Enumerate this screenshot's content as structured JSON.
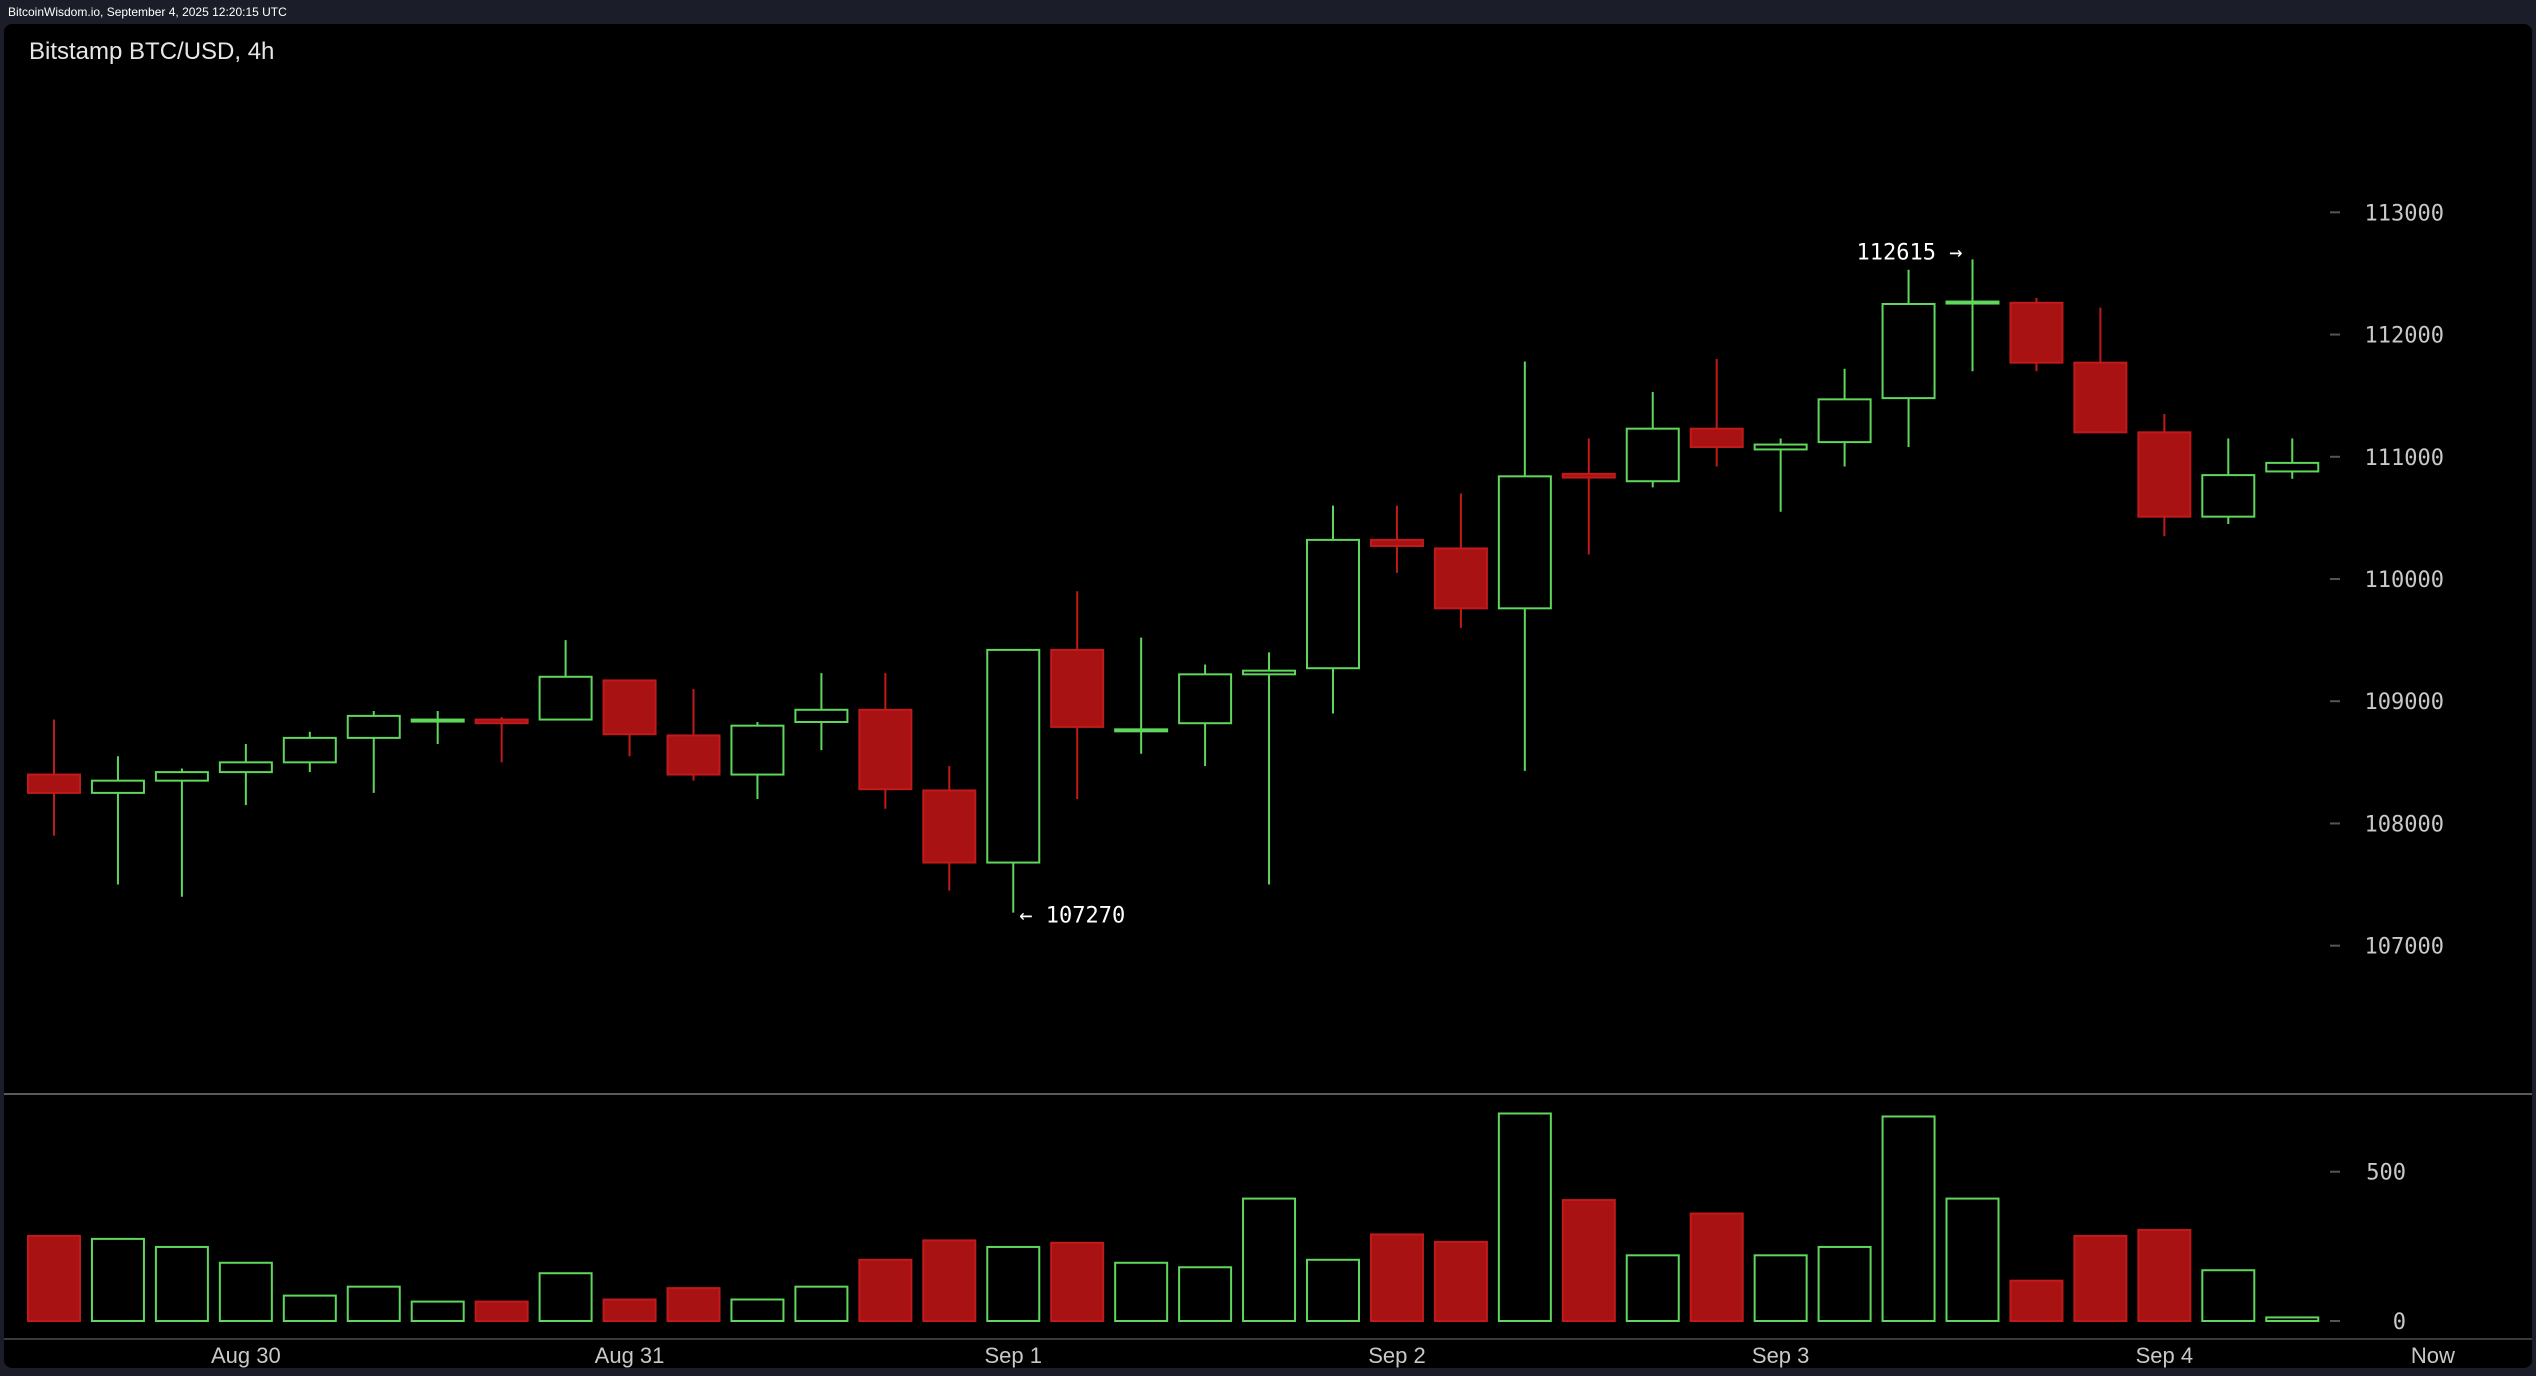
{
  "header": {
    "source_line": "BitcoinWisdom.io, September 4, 2025 12:20:15 UTC"
  },
  "chart_data": {
    "type": "candlestick",
    "title": "Bitstamp BTC/USD, 4h",
    "price_axis": {
      "ticks": [
        107000,
        108000,
        109000,
        110000,
        111000,
        112000,
        113000
      ],
      "range": [
        105950,
        114050
      ]
    },
    "volume_axis": {
      "ticks": [
        0,
        500
      ],
      "range": [
        0,
        700
      ]
    },
    "date_labels": [
      {
        "label": "Aug 30",
        "candle_index": 3
      },
      {
        "label": "Aug 31",
        "candle_index": 9
      },
      {
        "label": "Sep 1",
        "candle_index": 15
      },
      {
        "label": "Sep 2",
        "candle_index": 21
      },
      {
        "label": "Sep 3",
        "candle_index": 27
      },
      {
        "label": "Sep 4",
        "candle_index": 33
      },
      {
        "label": "Now",
        "candle_index": 37.2
      }
    ],
    "annotations": [
      {
        "text": "112615 →",
        "candle_index": 30,
        "price": 112615,
        "side": "left"
      },
      {
        "text": "← 107270",
        "candle_index": 15,
        "price": 107270,
        "side": "right"
      }
    ],
    "colors": {
      "up": "#5fd65c",
      "down": "#c11a1a",
      "down_body": "#a91212"
    },
    "candles": [
      {
        "o": 108400,
        "h": 108850,
        "l": 107900,
        "c": 108250,
        "v": 285
      },
      {
        "o": 108250,
        "h": 108550,
        "l": 107500,
        "c": 108350,
        "v": 275
      },
      {
        "o": 108350,
        "h": 108450,
        "l": 107400,
        "c": 108420,
        "v": 248
      },
      {
        "o": 108420,
        "h": 108650,
        "l": 108150,
        "c": 108500,
        "v": 195
      },
      {
        "o": 108500,
        "h": 108750,
        "l": 108420,
        "c": 108700,
        "v": 85
      },
      {
        "o": 108700,
        "h": 108920,
        "l": 108250,
        "c": 108880,
        "v": 115
      },
      {
        "o": 108850,
        "h": 108920,
        "l": 108650,
        "c": 108850,
        "v": 65
      },
      {
        "o": 108850,
        "h": 108870,
        "l": 108500,
        "c": 108820,
        "v": 65
      },
      {
        "o": 108850,
        "h": 109500,
        "l": 108850,
        "c": 109200,
        "v": 160
      },
      {
        "o": 109170,
        "h": 109170,
        "l": 108550,
        "c": 108730,
        "v": 72
      },
      {
        "o": 108720,
        "h": 109100,
        "l": 108350,
        "c": 108400,
        "v": 110
      },
      {
        "o": 108400,
        "h": 108830,
        "l": 108200,
        "c": 108800,
        "v": 72
      },
      {
        "o": 108830,
        "h": 109230,
        "l": 108600,
        "c": 108930,
        "v": 115
      },
      {
        "o": 108930,
        "h": 109230,
        "l": 108120,
        "c": 108280,
        "v": 205
      },
      {
        "o": 108270,
        "h": 108470,
        "l": 107450,
        "c": 107680,
        "v": 270
      },
      {
        "o": 107680,
        "h": 109420,
        "l": 107270,
        "c": 109420,
        "v": 248
      },
      {
        "o": 109420,
        "h": 109900,
        "l": 108200,
        "c": 108790,
        "v": 262
      },
      {
        "o": 108760,
        "h": 109520,
        "l": 108570,
        "c": 108770,
        "v": 195
      },
      {
        "o": 108820,
        "h": 109300,
        "l": 108470,
        "c": 109220,
        "v": 180
      },
      {
        "o": 109220,
        "h": 109400,
        "l": 107500,
        "c": 109250,
        "v": 410
      },
      {
        "o": 109270,
        "h": 110600,
        "l": 108900,
        "c": 110320,
        "v": 205
      },
      {
        "o": 110320,
        "h": 110600,
        "l": 110050,
        "c": 110270,
        "v": 290
      },
      {
        "o": 110250,
        "h": 110700,
        "l": 109600,
        "c": 109760,
        "v": 265
      },
      {
        "o": 109760,
        "h": 111780,
        "l": 108430,
        "c": 110840,
        "v": 695
      },
      {
        "o": 110860,
        "h": 111150,
        "l": 110200,
        "c": 110830,
        "v": 405
      },
      {
        "o": 110800,
        "h": 111530,
        "l": 110750,
        "c": 111230,
        "v": 220
      },
      {
        "o": 111230,
        "h": 111800,
        "l": 110920,
        "c": 111080,
        "v": 360
      },
      {
        "o": 111060,
        "h": 111150,
        "l": 110550,
        "c": 111100,
        "v": 220
      },
      {
        "o": 111120,
        "h": 111720,
        "l": 110920,
        "c": 111470,
        "v": 248
      },
      {
        "o": 111480,
        "h": 112530,
        "l": 111080,
        "c": 112250,
        "v": 685
      },
      {
        "o": 112260,
        "h": 112615,
        "l": 111700,
        "c": 112270,
        "v": 410
      },
      {
        "o": 112260,
        "h": 112300,
        "l": 111700,
        "c": 111770,
        "v": 135
      },
      {
        "o": 111770,
        "h": 112220,
        "l": 111200,
        "c": 111200,
        "v": 285
      },
      {
        "o": 111200,
        "h": 111350,
        "l": 110350,
        "c": 110510,
        "v": 305
      },
      {
        "o": 110510,
        "h": 111150,
        "l": 110450,
        "c": 110850,
        "v": 170
      },
      {
        "o": 110880,
        "h": 111150,
        "l": 110820,
        "c": 110950,
        "v": 12
      }
    ]
  }
}
